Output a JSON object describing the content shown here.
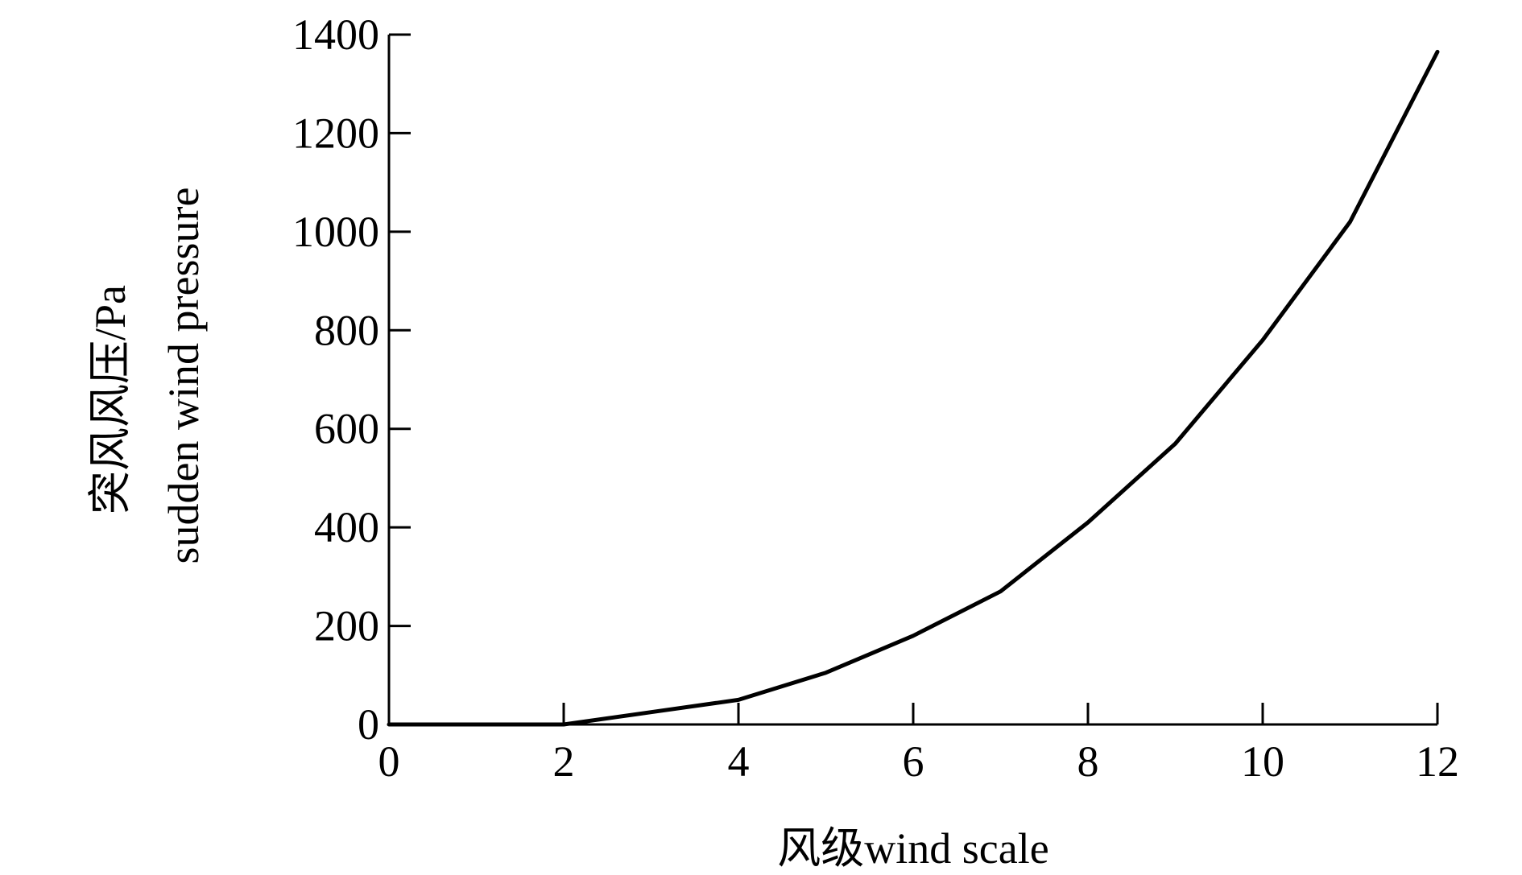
{
  "chart_data": {
    "type": "line",
    "title": "",
    "xlabel": "风级wind scale",
    "ylabel_line1": "突风风压/Pa",
    "ylabel_line2": "sudden wind pressure",
    "xlim": [
      0,
      12
    ],
    "ylim": [
      0,
      1400
    ],
    "x_ticks": [
      0,
      2,
      4,
      6,
      8,
      10,
      12
    ],
    "y_ticks": [
      0,
      200,
      400,
      600,
      800,
      1000,
      1200,
      1400
    ],
    "grid": false,
    "legend": "none",
    "series": [
      {
        "color": "#000000",
        "x": [
          0,
          1,
          2,
          3,
          4,
          5,
          6,
          7,
          8,
          9,
          10,
          11,
          12
        ],
        "y": [
          0,
          0,
          0,
          25,
          50,
          105,
          180,
          270,
          410,
          570,
          780,
          1020,
          1365
        ]
      }
    ]
  }
}
